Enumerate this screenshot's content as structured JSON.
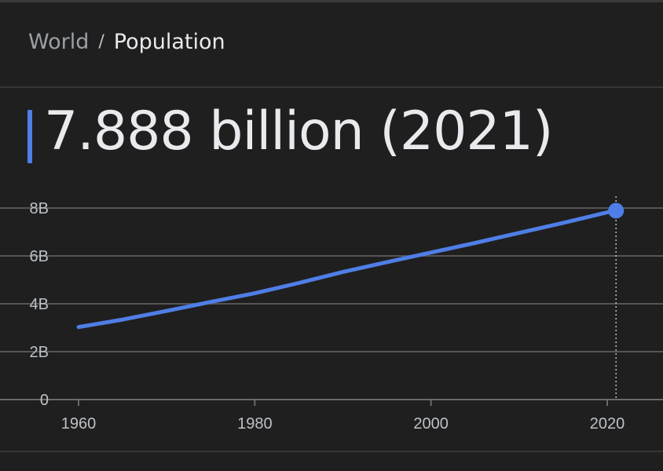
{
  "breadcrumb": {
    "parent": "World",
    "separator": "/",
    "current": "Population"
  },
  "headline": "7.888 billion (2021)",
  "colors": {
    "background": "#1f1f1f",
    "line": "#4f7ee6",
    "grid": "#555555",
    "text": "#e8eaed",
    "muted": "#9aa0a6"
  },
  "chart_data": {
    "type": "line",
    "title": "",
    "xlabel": "",
    "ylabel": "",
    "xlim": [
      1960,
      2024
    ],
    "ylim": [
      0,
      8
    ],
    "x_ticks": [
      1960,
      1980,
      2000,
      2020
    ],
    "x_tick_labels": [
      "1960",
      "1980",
      "2000",
      "2020"
    ],
    "y_ticks": [
      0,
      2,
      4,
      6,
      8
    ],
    "y_tick_labels": [
      "0",
      "2B",
      "4B",
      "6B",
      "8B"
    ],
    "grid": true,
    "unit": "billion",
    "series": [
      {
        "x": [
          1960,
          1965,
          1970,
          1975,
          1980,
          1985,
          1990,
          1995,
          2000,
          2005,
          2010,
          2015,
          2020,
          2021
        ],
        "y": [
          3.03,
          3.34,
          3.7,
          4.08,
          4.44,
          4.87,
          5.33,
          5.74,
          6.14,
          6.54,
          6.96,
          7.38,
          7.82,
          7.888
        ]
      }
    ],
    "highlight": {
      "x": 2021,
      "y": 7.888
    }
  }
}
